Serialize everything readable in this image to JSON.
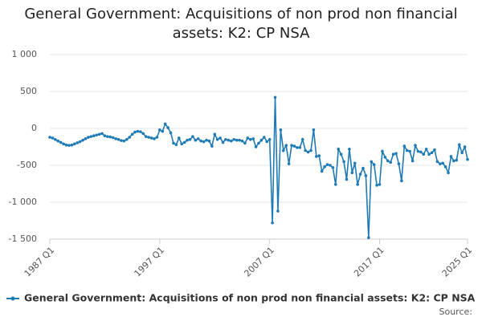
{
  "chart_data": {
    "type": "line",
    "title": "General Government: Acquisitions of non prod non financial assets: K2: CP NSA",
    "source": "Source:",
    "categories": [
      "1987 Q1",
      null,
      null,
      null,
      null,
      null,
      null,
      null,
      null,
      null,
      null,
      null,
      null,
      null,
      null,
      null,
      null,
      null,
      null,
      null,
      null,
      null,
      null,
      null,
      null,
      null,
      null,
      null,
      null,
      null,
      null,
      null,
      null,
      null,
      null,
      null,
      null,
      null,
      null,
      null,
      "1997 Q1",
      null,
      null,
      null,
      null,
      null,
      null,
      null,
      null,
      null,
      null,
      null,
      null,
      null,
      null,
      null,
      null,
      null,
      null,
      null,
      null,
      null,
      null,
      null,
      null,
      null,
      null,
      null,
      null,
      null,
      null,
      null,
      null,
      null,
      null,
      null,
      null,
      null,
      null,
      null,
      "2007 Q1",
      null,
      null,
      null,
      null,
      null,
      null,
      null,
      null,
      null,
      null,
      null,
      null,
      null,
      null,
      null,
      null,
      null,
      null,
      null,
      null,
      null,
      null,
      null,
      null,
      null,
      null,
      null,
      null,
      null,
      null,
      null,
      null,
      null,
      null,
      null,
      null,
      null,
      null,
      null,
      "2017 Q1",
      null,
      null,
      null,
      null,
      null,
      null,
      null,
      null,
      null,
      null,
      null,
      null,
      null,
      null,
      null,
      null,
      null,
      null,
      null,
      null,
      null,
      null,
      null,
      null,
      null,
      null,
      null,
      null,
      null,
      null,
      null,
      "2025 Q1"
    ],
    "series": [
      {
        "name": "General Government: Acquisitions of non prod non financial assets: K2: CP NSA",
        "color": "#1f7bb6",
        "values": [
          -120,
          -130,
          -150,
          -170,
          -190,
          -210,
          -225,
          -230,
          -225,
          -210,
          -195,
          -180,
          -160,
          -140,
          -120,
          -110,
          -100,
          -90,
          -80,
          -70,
          -100,
          -110,
          -115,
          -125,
          -140,
          -150,
          -165,
          -170,
          -150,
          -120,
          -80,
          -50,
          -40,
          -45,
          -70,
          -110,
          -120,
          -130,
          -140,
          -120,
          -20,
          -40,
          60,
          10,
          -60,
          -200,
          -220,
          -130,
          -210,
          -190,
          -160,
          -150,
          -110,
          -160,
          -140,
          -170,
          -180,
          -160,
          -170,
          -240,
          -80,
          -150,
          -130,
          -190,
          -150,
          -160,
          -170,
          -150,
          -160,
          -160,
          -170,
          -200,
          -130,
          -150,
          -140,
          -250,
          -200,
          -160,
          -120,
          -180,
          -150,
          -1280,
          420,
          -1120,
          -20,
          -300,
          -230,
          -480,
          -230,
          -240,
          -260,
          -260,
          -150,
          -300,
          -320,
          -300,
          -20,
          -380,
          -370,
          -580,
          -520,
          -490,
          -500,
          -530,
          -760,
          -280,
          -350,
          -450,
          -690,
          -280,
          -600,
          -470,
          -760,
          -620,
          -540,
          -640,
          -1480,
          -450,
          -490,
          -770,
          -760,
          -310,
          -390,
          -440,
          -460,
          -350,
          -340,
          -480,
          -710,
          -240,
          -300,
          -310,
          -440,
          -230,
          -310,
          -320,
          -350,
          -280,
          -350,
          -330,
          -290,
          -450,
          -480,
          -470,
          -520,
          -600,
          -380,
          -440,
          -430,
          -220,
          -330,
          -250,
          -420
        ]
      }
    ],
    "ylim": [
      -1500,
      1000
    ],
    "yticks": [
      {
        "value": 1000,
        "label": "1 000"
      },
      500,
      0,
      -500,
      {
        "value": -1000,
        "label": "-1 000"
      },
      {
        "value": -1500,
        "label": "-1 500"
      }
    ],
    "grid": true
  }
}
